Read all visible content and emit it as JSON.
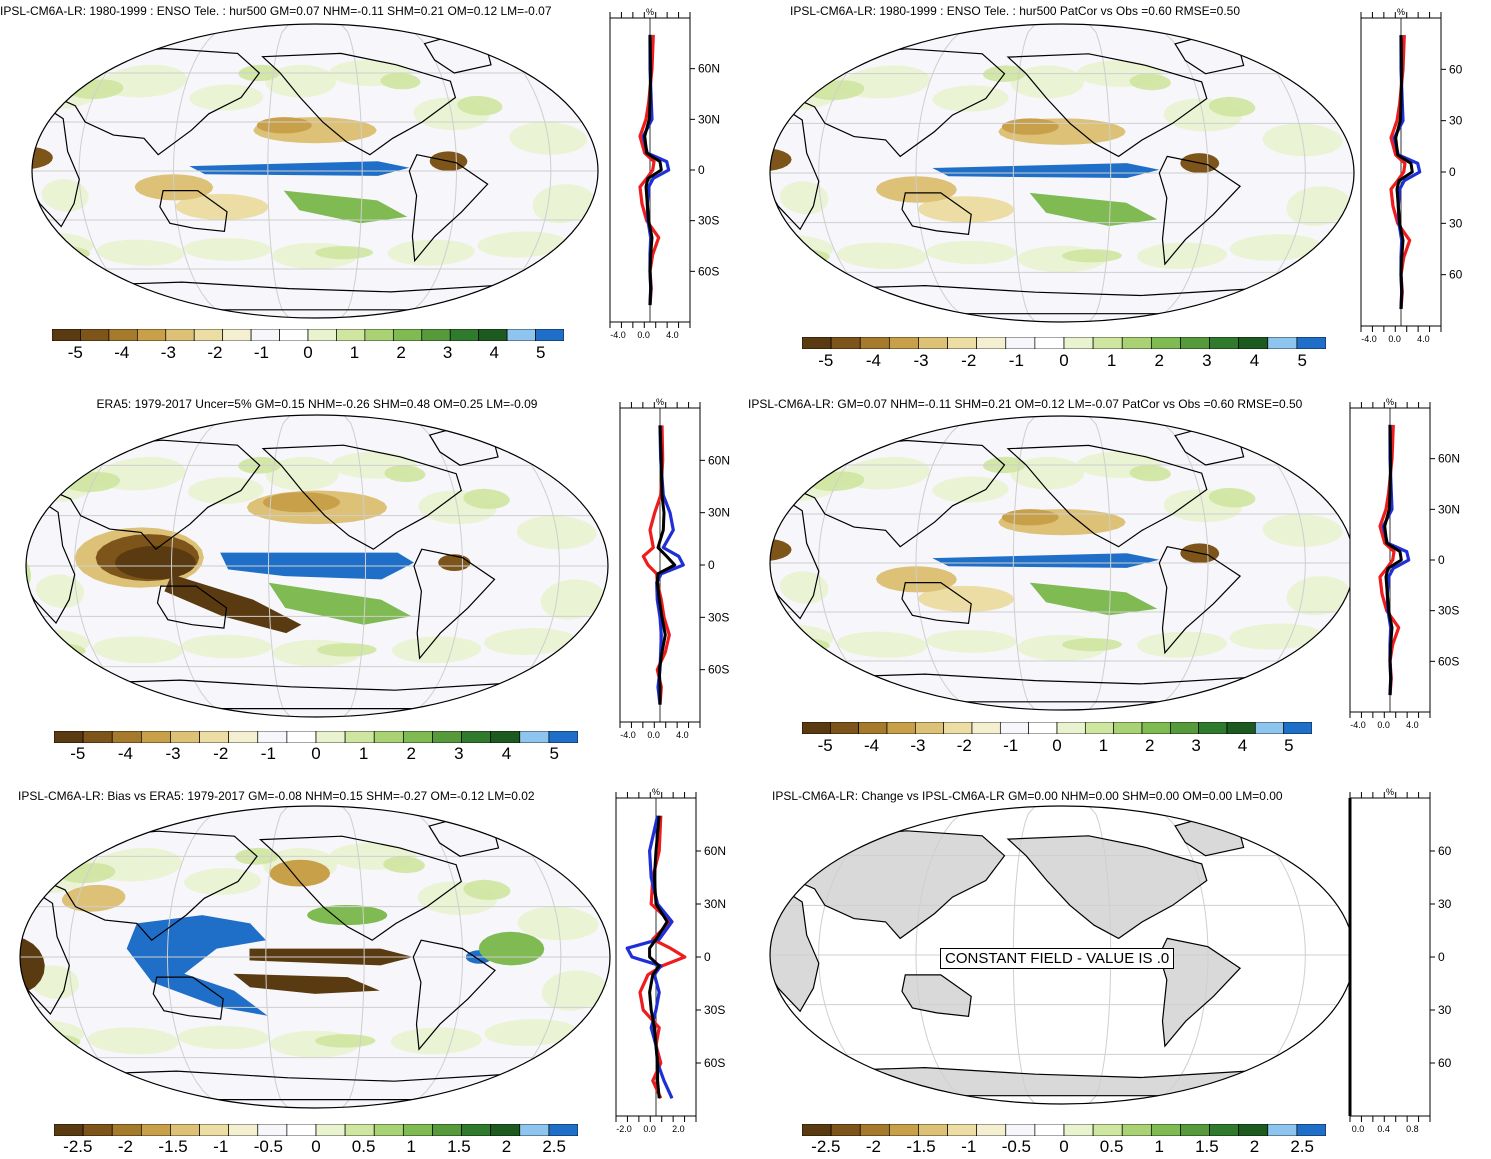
{
  "panels": [
    {
      "id": "p1",
      "title": "IPSL-CM6A-LR: 1980-1999 : ENSO Tele. : hur500 GM=0.07 NHM=-0.11 SHM=0.21 OM=0.12 LM=-0.07",
      "profile": {
        "unit": "%",
        "xticks": [
          "-4.0",
          "0.0",
          "4.0"
        ],
        "lat_labels": [
          "60N",
          "30N",
          "0",
          "30S",
          "60S"
        ]
      },
      "colorbar_labels": [
        "-5",
        "-4",
        "-3",
        "-2",
        "-1",
        "0",
        "1",
        "2",
        "3",
        "4",
        "5"
      ]
    },
    {
      "id": "p2",
      "title": "IPSL-CM6A-LR: 1980-1999 : ENSO Tele. : hur500 PatCor vs Obs =0.60 RMSE=0.50",
      "profile": {
        "unit": "%",
        "xticks": [
          "-4.0",
          "0.0",
          "4.0"
        ],
        "lat_labels": [
          "60",
          "30",
          "0",
          "30",
          "60"
        ]
      },
      "colorbar_labels": [
        "-5",
        "-4",
        "-3",
        "-2",
        "-1",
        "0",
        "1",
        "2",
        "3",
        "4",
        "5"
      ]
    },
    {
      "id": "p3",
      "title": "ERA5: 1979-2017 Uncer=5% GM=0.15 NHM=-0.26 SHM=0.48 OM=0.25 LM=-0.09",
      "profile": {
        "unit": "%",
        "xticks": [
          "-4.0",
          "0.0",
          "4.0"
        ],
        "lat_labels": [
          "60N",
          "30N",
          "0",
          "30S",
          "60S"
        ]
      },
      "colorbar_labels": [
        "-5",
        "-4",
        "-3",
        "-2",
        "-1",
        "0",
        "1",
        "2",
        "3",
        "4",
        "5"
      ]
    },
    {
      "id": "p4",
      "title": "IPSL-CM6A-LR: GM=0.07 NHM=-0.11 SHM=0.21 OM=0.12 LM=-0.07 PatCor vs Obs =0.60 RMSE=0.50",
      "profile": {
        "unit": "%",
        "xticks": [
          "-4.0",
          "0.0",
          "4.0"
        ],
        "lat_labels": [
          "60N",
          "30N",
          "0",
          "30S",
          "60S"
        ]
      },
      "colorbar_labels": [
        "-5",
        "-4",
        "-3",
        "-2",
        "-1",
        "0",
        "1",
        "2",
        "3",
        "4",
        "5"
      ]
    },
    {
      "id": "p5",
      "title": "IPSL-CM6A-LR: Bias vs ERA5: 1979-2017 GM=-0.08 NHM=0.15 SHM=-0.27 OM=-0.12 LM=0.02",
      "profile": {
        "unit": "%",
        "xticks": [
          "-2.0",
          "0.0",
          "2.0"
        ],
        "lat_labels": [
          "60N",
          "30N",
          "0",
          "30S",
          "60S"
        ]
      },
      "colorbar_labels": [
        "-2.5",
        "-2",
        "-1.5",
        "-1",
        "-0.5",
        "0",
        "0.5",
        "1",
        "1.5",
        "2",
        "2.5"
      ]
    },
    {
      "id": "p6",
      "title": "IPSL-CM6A-LR: Change vs IPSL-CM6A-LR GM=0.00 NHM=0.00 SHM=0.00 OM=0.00 LM=0.00",
      "constant_label": "CONSTANT FIELD - VALUE IS .0",
      "profile": {
        "unit": "%",
        "xticks": [
          "0.0",
          "0.4",
          "0.8"
        ],
        "lat_labels": [
          "60",
          "30",
          "0",
          "30",
          "60"
        ]
      },
      "colorbar_labels": [
        "-2.5",
        "-2",
        "-1.5",
        "-1",
        "-0.5",
        "0",
        "0.5",
        "1",
        "1.5",
        "2",
        "2.5"
      ]
    }
  ],
  "colors": {
    "palette": [
      "#5a3a10",
      "#7d5419",
      "#a57a2c",
      "#c9a04a",
      "#dcc177",
      "#ecdda4",
      "#f5efd2",
      "#f7f7fb",
      "#ffffff",
      "#e9f3cf",
      "#cfe6a0",
      "#a8d274",
      "#7fba52",
      "#569a3c",
      "#2f7a2c",
      "#1c5a20",
      "#8ec5ee",
      "#1f6fc8"
    ],
    "red_line": "#ee1c1c",
    "blue_line": "#1f2fd8",
    "black_line": "#000000",
    "land_gray": "#d9d9d9"
  },
  "chart_data": [
    {
      "type": "heatmap",
      "title": "IPSL-CM6A-LR: 1980-1999 : ENSO Tele. : hur500 GM=0.07 NHM=-0.11 SHM=0.21 OM=0.12 LM=-0.07",
      "variable": "hur500",
      "units": "%",
      "clim": [
        -5,
        5
      ],
      "colorbar_ticks": [
        -5,
        -4,
        -3,
        -2,
        -1,
        0,
        1,
        2,
        3,
        4,
        5
      ],
      "stats": {
        "GM": 0.07,
        "NHM": -0.11,
        "SHM": 0.21,
        "OM": 0.12,
        "LM": -0.07
      }
    },
    {
      "type": "heatmap",
      "title": "IPSL-CM6A-LR: 1980-1999 : ENSO Tele. : hur500 PatCor vs Obs =0.60 RMSE=0.50",
      "variable": "hur500",
      "units": "%",
      "clim": [
        -5,
        5
      ],
      "colorbar_ticks": [
        -5,
        -4,
        -3,
        -2,
        -1,
        0,
        1,
        2,
        3,
        4,
        5
      ],
      "stats": {
        "PatCor": 0.6,
        "RMSE": 0.5
      }
    },
    {
      "type": "heatmap",
      "title": "ERA5: 1979-2017 Uncer=5% GM=0.15 NHM=-0.26 SHM=0.48 OM=0.25 LM=-0.09",
      "units": "%",
      "clim": [
        -5,
        5
      ],
      "colorbar_ticks": [
        -5,
        -4,
        -3,
        -2,
        -1,
        0,
        1,
        2,
        3,
        4,
        5
      ],
      "stats": {
        "GM": 0.15,
        "NHM": -0.26,
        "SHM": 0.48,
        "OM": 0.25,
        "LM": -0.09
      }
    },
    {
      "type": "heatmap",
      "title": "IPSL-CM6A-LR: GM=0.07 NHM=-0.11 SHM=0.21 OM=0.12 LM=-0.07 PatCor vs Obs =0.60 RMSE=0.50",
      "units": "%",
      "clim": [
        -5,
        5
      ],
      "colorbar_ticks": [
        -5,
        -4,
        -3,
        -2,
        -1,
        0,
        1,
        2,
        3,
        4,
        5
      ],
      "stats": {
        "GM": 0.07,
        "NHM": -0.11,
        "SHM": 0.21,
        "OM": 0.12,
        "LM": -0.07,
        "PatCor": 0.6,
        "RMSE": 0.5
      }
    },
    {
      "type": "heatmap",
      "title": "IPSL-CM6A-LR: Bias vs ERA5: 1979-2017 GM=-0.08 NHM=0.15 SHM=-0.27 OM=-0.12 LM=0.02",
      "units": "%",
      "clim": [
        -2.5,
        2.5
      ],
      "colorbar_ticks": [
        -2.5,
        -2,
        -1.5,
        -1,
        -0.5,
        0,
        0.5,
        1,
        1.5,
        2,
        2.5
      ],
      "stats": {
        "GM": -0.08,
        "NHM": 0.15,
        "SHM": -0.27,
        "OM": -0.12,
        "LM": 0.02
      }
    },
    {
      "type": "heatmap",
      "title": "IPSL-CM6A-LR: Change vs IPSL-CM6A-LR GM=0.00 NHM=0.00 SHM=0.00 OM=0.00 LM=0.00",
      "units": "%",
      "clim": [
        -2.5,
        2.5
      ],
      "colorbar_ticks": [
        -2.5,
        -2,
        -1.5,
        -1,
        -0.5,
        0,
        0.5,
        1,
        1.5,
        2,
        2.5
      ],
      "stats": {
        "GM": 0.0,
        "NHM": 0.0,
        "SHM": 0.0,
        "OM": 0.0,
        "LM": 0.0
      },
      "constant_value": 0.0
    },
    {
      "type": "line",
      "xlabel": "%",
      "xlim": [
        -6,
        6
      ],
      "ylim": [
        -90,
        90
      ],
      "y_ticks": [
        60,
        30,
        0,
        -30,
        -60
      ],
      "series": [
        {
          "color": "red",
          "lat": [
            80,
            60,
            40,
            30,
            20,
            10,
            5,
            0,
            -5,
            -10,
            -20,
            -30,
            -40,
            -50,
            -60,
            -70,
            -80
          ],
          "values": [
            0.5,
            0.3,
            -0.2,
            -0.6,
            -1.5,
            -0.8,
            0.6,
            0.4,
            -0.5,
            -1.5,
            -1.2,
            -0.5,
            1.3,
            0.4,
            0.0,
            0.2,
            0.0
          ]
        },
        {
          "color": "blue",
          "lat": [
            80,
            60,
            40,
            30,
            20,
            10,
            5,
            0,
            -5,
            -10,
            -20,
            -30,
            -40,
            -50,
            -60,
            -70,
            -80
          ],
          "values": [
            0.0,
            0.0,
            0.2,
            0.3,
            -1.0,
            -0.4,
            2.5,
            2.8,
            0.5,
            -0.2,
            -0.4,
            -0.3,
            0.1,
            0.0,
            0.0,
            0.1,
            0.0
          ]
        },
        {
          "color": "black",
          "lat": [
            80,
            60,
            40,
            30,
            20,
            10,
            5,
            0,
            -5,
            -10,
            -20,
            -30,
            -40,
            -50,
            -60,
            -70,
            -80
          ],
          "values": [
            0.0,
            0.1,
            0.0,
            -0.1,
            -0.8,
            -0.5,
            1.5,
            1.7,
            -0.3,
            -0.6,
            -0.4,
            -0.2,
            0.3,
            0.1,
            0.0,
            0.1,
            0.0
          ]
        }
      ]
    },
    {
      "type": "line",
      "xlabel": "%",
      "xlim": [
        -6,
        6
      ],
      "ylim": [
        -90,
        90
      ],
      "y_ticks": [
        60,
        30,
        0,
        -30,
        -60
      ],
      "series": [
        {
          "color": "red",
          "lat": [
            80,
            60,
            40,
            30,
            20,
            10,
            5,
            0,
            -5,
            -10,
            -20,
            -30,
            -40,
            -50,
            -60,
            -70,
            -80
          ],
          "values": [
            0.5,
            0.3,
            -0.2,
            -0.6,
            -1.5,
            -0.8,
            0.6,
            0.4,
            -0.5,
            -1.5,
            -1.2,
            -0.5,
            1.3,
            0.4,
            0.0,
            0.2,
            0.0
          ]
        },
        {
          "color": "blue",
          "lat": [
            80,
            60,
            40,
            30,
            20,
            10,
            5,
            0,
            -5,
            -10,
            -20,
            -30,
            -40,
            -50,
            -60,
            -70,
            -80
          ],
          "values": [
            0.0,
            0.0,
            0.2,
            0.3,
            -1.0,
            -0.4,
            2.5,
            2.8,
            0.5,
            -0.2,
            -0.4,
            -0.3,
            0.1,
            0.0,
            0.0,
            0.1,
            0.0
          ]
        },
        {
          "color": "black",
          "lat": [
            80,
            60,
            40,
            30,
            20,
            10,
            5,
            0,
            -5,
            -10,
            -20,
            -30,
            -40,
            -50,
            -60,
            -70,
            -80
          ],
          "values": [
            0.0,
            0.1,
            0.0,
            -0.1,
            -0.8,
            -0.5,
            1.5,
            1.7,
            -0.3,
            -0.6,
            -0.4,
            -0.2,
            0.3,
            0.1,
            0.0,
            0.1,
            0.0
          ]
        }
      ]
    },
    {
      "type": "line",
      "xlabel": "%",
      "xlim": [
        -6,
        6
      ],
      "ylim": [
        -90,
        90
      ],
      "y_ticks": [
        60,
        30,
        0,
        -30,
        -60
      ],
      "series": [
        {
          "color": "red",
          "lat": [
            80,
            60,
            40,
            30,
            20,
            10,
            5,
            0,
            -5,
            -10,
            -20,
            -30,
            -40,
            -50,
            -60,
            -70,
            -80
          ],
          "values": [
            0.3,
            0.4,
            0.1,
            -0.8,
            -1.5,
            -1.0,
            -2.5,
            -1.8,
            -0.5,
            -0.4,
            0.2,
            0.6,
            1.4,
            0.8,
            -0.4,
            0.2,
            0.0
          ]
        },
        {
          "color": "blue",
          "lat": [
            80,
            60,
            40,
            30,
            20,
            10,
            5,
            0,
            -5,
            -10,
            -20,
            -30,
            -40,
            -50,
            -60,
            -70,
            -80
          ],
          "values": [
            0.0,
            0.1,
            0.5,
            1.5,
            2.0,
            0.5,
            2.8,
            3.5,
            0.2,
            -0.5,
            -0.4,
            0.0,
            0.2,
            0.1,
            0.0,
            -0.3,
            0.0
          ]
        },
        {
          "color": "black",
          "lat": [
            80,
            60,
            40,
            30,
            20,
            10,
            5,
            0,
            -5,
            -10,
            -20,
            -30,
            -40,
            -50,
            -60,
            -70,
            -80
          ],
          "values": [
            0.0,
            0.2,
            0.3,
            0.6,
            0.5,
            -0.3,
            1.0,
            2.2,
            -0.3,
            -0.4,
            -0.1,
            0.3,
            0.8,
            0.3,
            -0.1,
            0.0,
            0.0
          ]
        }
      ]
    },
    {
      "type": "line",
      "xlabel": "%",
      "xlim": [
        -6,
        6
      ],
      "ylim": [
        -90,
        90
      ],
      "y_ticks": [
        60,
        30,
        0,
        -30,
        -60
      ],
      "series": [
        {
          "color": "red",
          "lat": [
            80,
            60,
            40,
            30,
            20,
            10,
            5,
            0,
            -5,
            -10,
            -20,
            -30,
            -40,
            -50,
            -60,
            -70,
            -80
          ],
          "values": [
            0.5,
            0.3,
            -0.2,
            -0.6,
            -1.5,
            -0.8,
            0.6,
            0.4,
            -0.5,
            -1.5,
            -1.2,
            -0.5,
            1.3,
            0.4,
            0.0,
            0.2,
            0.0
          ]
        },
        {
          "color": "blue",
          "lat": [
            80,
            60,
            40,
            30,
            20,
            10,
            5,
            0,
            -5,
            -10,
            -20,
            -30,
            -40,
            -50,
            -60,
            -70,
            -80
          ],
          "values": [
            0.0,
            0.0,
            0.2,
            0.3,
            -1.0,
            -0.4,
            2.5,
            2.8,
            0.5,
            -0.2,
            -0.4,
            -0.3,
            0.1,
            0.0,
            0.0,
            0.1,
            0.0
          ]
        },
        {
          "color": "black",
          "lat": [
            80,
            60,
            40,
            30,
            20,
            10,
            5,
            0,
            -5,
            -10,
            -20,
            -30,
            -40,
            -50,
            -60,
            -70,
            -80
          ],
          "values": [
            0.0,
            0.1,
            0.0,
            -0.1,
            -0.8,
            -0.5,
            1.5,
            1.7,
            -0.3,
            -0.6,
            -0.4,
            -0.2,
            0.3,
            0.1,
            0.0,
            0.1,
            0.0
          ]
        }
      ]
    },
    {
      "type": "line",
      "xlabel": "%",
      "xlim": [
        -2.5,
        2.5
      ],
      "ylim": [
        -90,
        90
      ],
      "y_ticks": [
        60,
        30,
        0,
        -30,
        -60
      ],
      "series": [
        {
          "color": "red",
          "lat": [
            80,
            60,
            45,
            30,
            20,
            10,
            5,
            0,
            -5,
            -10,
            -20,
            -30,
            -40,
            -50,
            -60,
            -70,
            -80
          ],
          "values": [
            0.3,
            0.2,
            -0.2,
            -0.3,
            0.9,
            -0.2,
            0.9,
            1.8,
            0.4,
            -0.5,
            -1.0,
            -0.8,
            0.2,
            0.0,
            0.3,
            -0.2,
            0.3
          ]
        },
        {
          "color": "blue",
          "lat": [
            80,
            60,
            45,
            30,
            20,
            10,
            5,
            0,
            -5,
            -10,
            -20,
            -30,
            -40,
            -50,
            -60,
            -70,
            -80
          ],
          "values": [
            0.1,
            -0.4,
            -0.3,
            0.1,
            1.0,
            0.2,
            -1.8,
            -1.5,
            0.3,
            -0.1,
            0.2,
            0.0,
            -0.3,
            0.0,
            0.1,
            0.5,
            1.0
          ]
        },
        {
          "color": "black",
          "lat": [
            80,
            60,
            45,
            30,
            20,
            10,
            5,
            0,
            -5,
            -10,
            -20,
            -30,
            -40,
            -50,
            -60,
            -70,
            -80
          ],
          "values": [
            0.2,
            0.0,
            -0.1,
            0.0,
            0.7,
            0.0,
            -0.4,
            -0.4,
            0.2,
            -0.2,
            -0.4,
            -0.3,
            -0.1,
            0.0,
            0.1,
            0.1,
            0.2
          ]
        }
      ]
    },
    {
      "type": "line",
      "xlabel": "%",
      "xlim": [
        0,
        1
      ],
      "ylim": [
        -90,
        90
      ],
      "y_ticks": [
        60,
        30,
        0,
        -30,
        -60
      ],
      "series": [
        {
          "color": "black",
          "lat": [
            90,
            -90
          ],
          "values": [
            0.0,
            0.0
          ]
        }
      ]
    }
  ]
}
